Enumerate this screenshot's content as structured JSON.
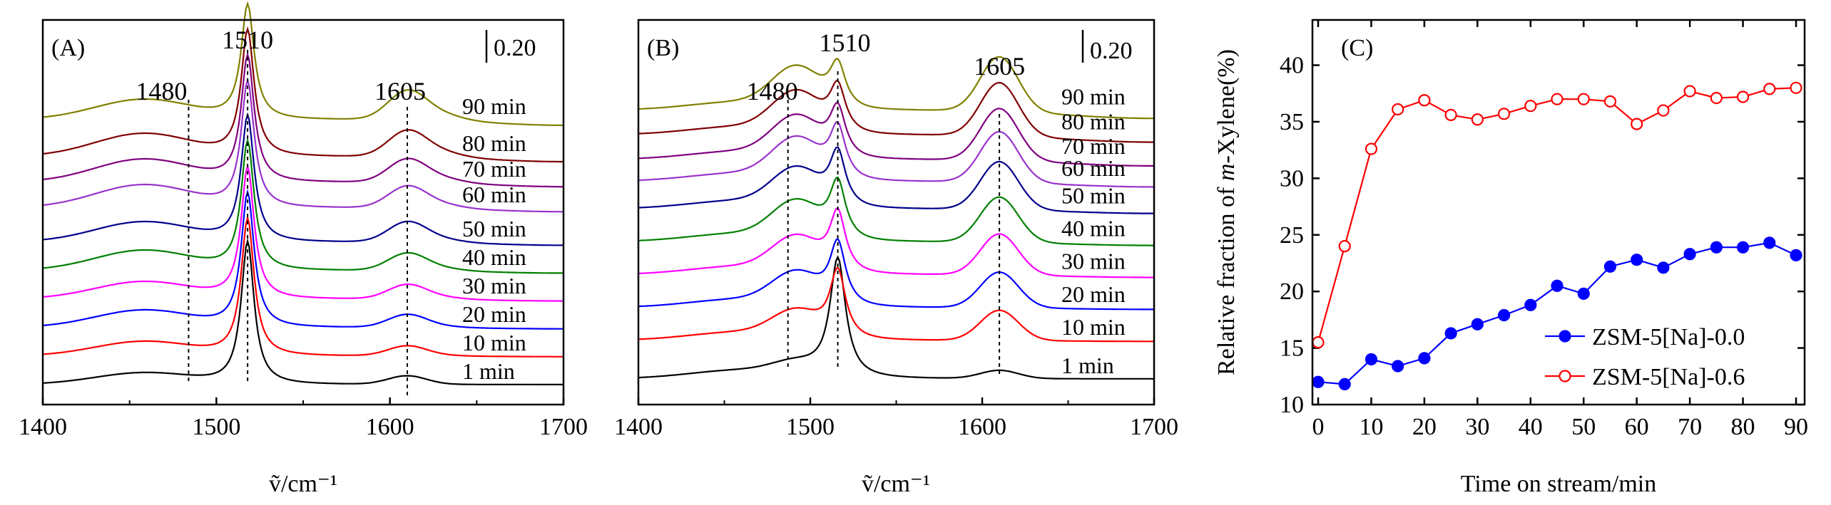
{
  "chart_data": [
    {
      "panel": "A",
      "type": "line",
      "panel_label": "(A)",
      "xlabel": "ṽ/cm⁻¹",
      "xlim": [
        1400,
        1700
      ],
      "xticks": [
        "1400",
        "1500",
        "1600",
        "1700"
      ],
      "scale_bar_label": "0.20",
      "scale_bar_value": 0.2,
      "band_labels": [
        {
          "text": "1480",
          "x": 1484
        },
        {
          "text": "1510",
          "x": 1518
        },
        {
          "text": "1605",
          "x": 1610
        }
      ],
      "series": [
        {
          "name": "1 min",
          "color": "#000000",
          "baseline": 0.0,
          "peak1518": 0.5,
          "peak1610": 0.03,
          "broad1460": 0.04
        },
        {
          "name": "10 min",
          "color": "#ff0000",
          "baseline": 0.1,
          "peak1518": 0.48,
          "peak1610": 0.035,
          "broad1460": 0.05
        },
        {
          "name": "20 min",
          "color": "#0000ff",
          "baseline": 0.2,
          "peak1518": 0.47,
          "peak1610": 0.045,
          "broad1460": 0.06
        },
        {
          "name": "30 min",
          "color": "#ff00ff",
          "baseline": 0.3,
          "peak1518": 0.46,
          "peak1610": 0.05,
          "broad1460": 0.06
        },
        {
          "name": "40 min",
          "color": "#008000",
          "baseline": 0.4,
          "peak1518": 0.45,
          "peak1610": 0.06,
          "broad1460": 0.07
        },
        {
          "name": "50 min",
          "color": "#00008b",
          "baseline": 0.5,
          "peak1518": 0.44,
          "peak1610": 0.07,
          "broad1460": 0.07
        },
        {
          "name": "60 min",
          "color": "#9932cc",
          "baseline": 0.62,
          "peak1518": 0.44,
          "peak1610": 0.075,
          "broad1460": 0.08
        },
        {
          "name": "70 min",
          "color": "#800080",
          "baseline": 0.71,
          "peak1518": 0.44,
          "peak1610": 0.08,
          "broad1460": 0.08
        },
        {
          "name": "80 min",
          "color": "#800000",
          "baseline": 0.8,
          "peak1518": 0.44,
          "peak1610": 0.09,
          "broad1460": 0.08
        },
        {
          "name": "90 min",
          "color": "#808000",
          "baseline": 0.93,
          "peak1518": 0.4,
          "peak1610": 0.1,
          "broad1460": 0.07
        }
      ]
    },
    {
      "panel": "B",
      "type": "line",
      "panel_label": "(B)",
      "xlabel": "ṽ/cm⁻¹",
      "xlim": [
        1400,
        1700
      ],
      "xticks": [
        "1400",
        "1500",
        "1600",
        "1700"
      ],
      "scale_bar_label": "0.20",
      "scale_bar_value": 0.2,
      "band_labels": [
        {
          "text": "1480",
          "x": 1487
        },
        {
          "text": "1510",
          "x": 1516
        },
        {
          "text": "1605",
          "x": 1610
        }
      ],
      "series": [
        {
          "name": "1 min",
          "color": "#000000",
          "baseline": 0.0,
          "peak1518": 0.43,
          "peak1610": 0.03,
          "broad1480": 0.04
        },
        {
          "name": "10 min",
          "color": "#ff0000",
          "baseline": 0.14,
          "peak1518": 0.24,
          "peak1610": 0.11,
          "broad1480": 0.09
        },
        {
          "name": "20 min",
          "color": "#0000ff",
          "baseline": 0.26,
          "peak1518": 0.22,
          "peak1610": 0.13,
          "broad1480": 0.11
        },
        {
          "name": "30 min",
          "color": "#ff00ff",
          "baseline": 0.38,
          "peak1518": 0.21,
          "peak1610": 0.15,
          "broad1480": 0.12
        },
        {
          "name": "40 min",
          "color": "#008000",
          "baseline": 0.5,
          "peak1518": 0.2,
          "peak1610": 0.165,
          "broad1480": 0.13
        },
        {
          "name": "50 min",
          "color": "#00008b",
          "baseline": 0.62,
          "peak1518": 0.19,
          "peak1610": 0.175,
          "broad1480": 0.13
        },
        {
          "name": "60 min",
          "color": "#9932cc",
          "baseline": 0.72,
          "peak1518": 0.18,
          "peak1610": 0.185,
          "broad1480": 0.14
        },
        {
          "name": "70 min",
          "color": "#800080",
          "baseline": 0.8,
          "peak1518": 0.17,
          "peak1610": 0.19,
          "broad1480": 0.14
        },
        {
          "name": "80 min",
          "color": "#800000",
          "baseline": 0.89,
          "peak1518": 0.16,
          "peak1610": 0.195,
          "broad1480": 0.14
        },
        {
          "name": "90 min",
          "color": "#808000",
          "baseline": 0.98,
          "peak1518": 0.15,
          "peak1610": 0.2,
          "broad1480": 0.14
        }
      ]
    },
    {
      "panel": "C",
      "type": "line",
      "panel_label": "(C)",
      "xlabel": "Time on stream/min",
      "ylabel_parts": [
        "Relative fraction of ",
        "m",
        "-Xylene(%)"
      ],
      "xlim": [
        0,
        90
      ],
      "ylim": [
        10,
        44
      ],
      "xticks": [
        "0",
        "10",
        "20",
        "30",
        "40",
        "50",
        "60",
        "70",
        "80",
        "90"
      ],
      "yticks": [
        "10",
        "15",
        "20",
        "25",
        "30",
        "35",
        "40"
      ],
      "legend_position": "lower-right",
      "series": [
        {
          "name": "ZSM-5[Na]-0.0",
          "color": "#0000ff",
          "marker": "filled-circle",
          "x": [
            0,
            5,
            10,
            15,
            20,
            25,
            30,
            35,
            40,
            45,
            50,
            55,
            60,
            65,
            70,
            75,
            80,
            85,
            90
          ],
          "y": [
            12.0,
            11.8,
            14.0,
            13.4,
            14.1,
            16.3,
            17.1,
            17.9,
            18.8,
            20.5,
            19.8,
            22.2,
            22.8,
            22.1,
            23.3,
            23.9,
            23.9,
            24.3,
            23.2
          ]
        },
        {
          "name": "ZSM-5[Na]-0.6",
          "color": "#ff0000",
          "marker": "open-circle",
          "x": [
            0,
            5,
            10,
            15,
            20,
            25,
            30,
            35,
            40,
            45,
            50,
            55,
            60,
            65,
            70,
            75,
            80,
            85,
            90
          ],
          "y": [
            15.5,
            24.0,
            32.6,
            36.1,
            36.9,
            35.6,
            35.2,
            35.7,
            36.4,
            37.0,
            37.0,
            36.8,
            34.8,
            36.0,
            37.7,
            37.1,
            37.2,
            37.9,
            38.0
          ]
        }
      ]
    }
  ]
}
